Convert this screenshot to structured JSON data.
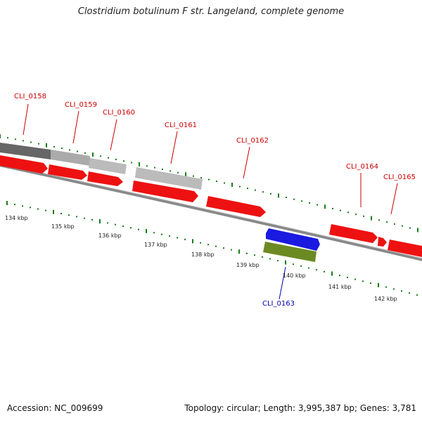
{
  "title": "Clostridium botulinum F str. Langeland, complete genome",
  "footer": {
    "accession": "Accession: NC_009699",
    "summary": "Topology: circular; Length: 3,995,387 bp; Genes: 3,781"
  },
  "gene_labels": [
    "CLI_0158",
    "CLI_0159",
    "CLI_0160",
    "CLI_0161",
    "CLI_0162",
    "CLI_0163",
    "CLI_0164",
    "CLI_0165"
  ],
  "kbp_labels": [
    "134 kbp",
    "135 kbp",
    "136 kbp",
    "137 kbp",
    "138 kbp",
    "139 kbp",
    "140 kbp",
    "141 kbp",
    "142 kbp"
  ],
  "colors": {
    "cds": "#ee1111",
    "rna": "#1a1ae0",
    "gene_green": "#6b8a22",
    "tick_green": "#1a7a1a",
    "backbone": "#888888",
    "unlabeled_dark": "#666666",
    "unlabeled_light": "#bbbbbb",
    "label_red": "#cc0000",
    "label_blue": "#0000aa"
  }
}
